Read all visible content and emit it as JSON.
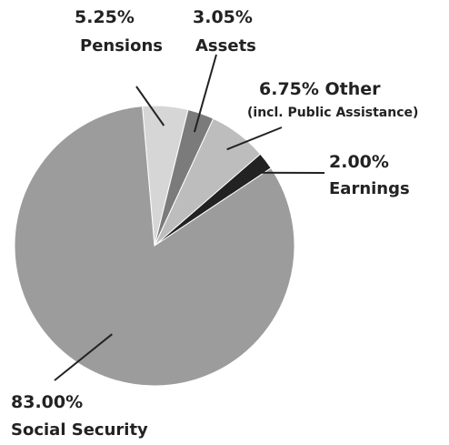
{
  "chart_data": {
    "type": "pie",
    "title": "",
    "slices": [
      {
        "label": "Pensions",
        "value": 5.25,
        "value_label": "5.25%",
        "color": "#d6d6d6"
      },
      {
        "label": "Assets",
        "value": 3.05,
        "value_label": "3.05%",
        "color": "#7b7b7b"
      },
      {
        "label": "Other",
        "sublabel": "(incl. Public Assistance)",
        "value": 6.75,
        "value_label": "6.75% Other",
        "color": "#bdbdbd"
      },
      {
        "label": "Earnings",
        "value": 2.0,
        "value_label": "2.00%",
        "color": "#222222"
      },
      {
        "label": "Social Security",
        "value": 83.0,
        "value_label": "83.00%",
        "color": "#9c9c9c"
      }
    ]
  }
}
